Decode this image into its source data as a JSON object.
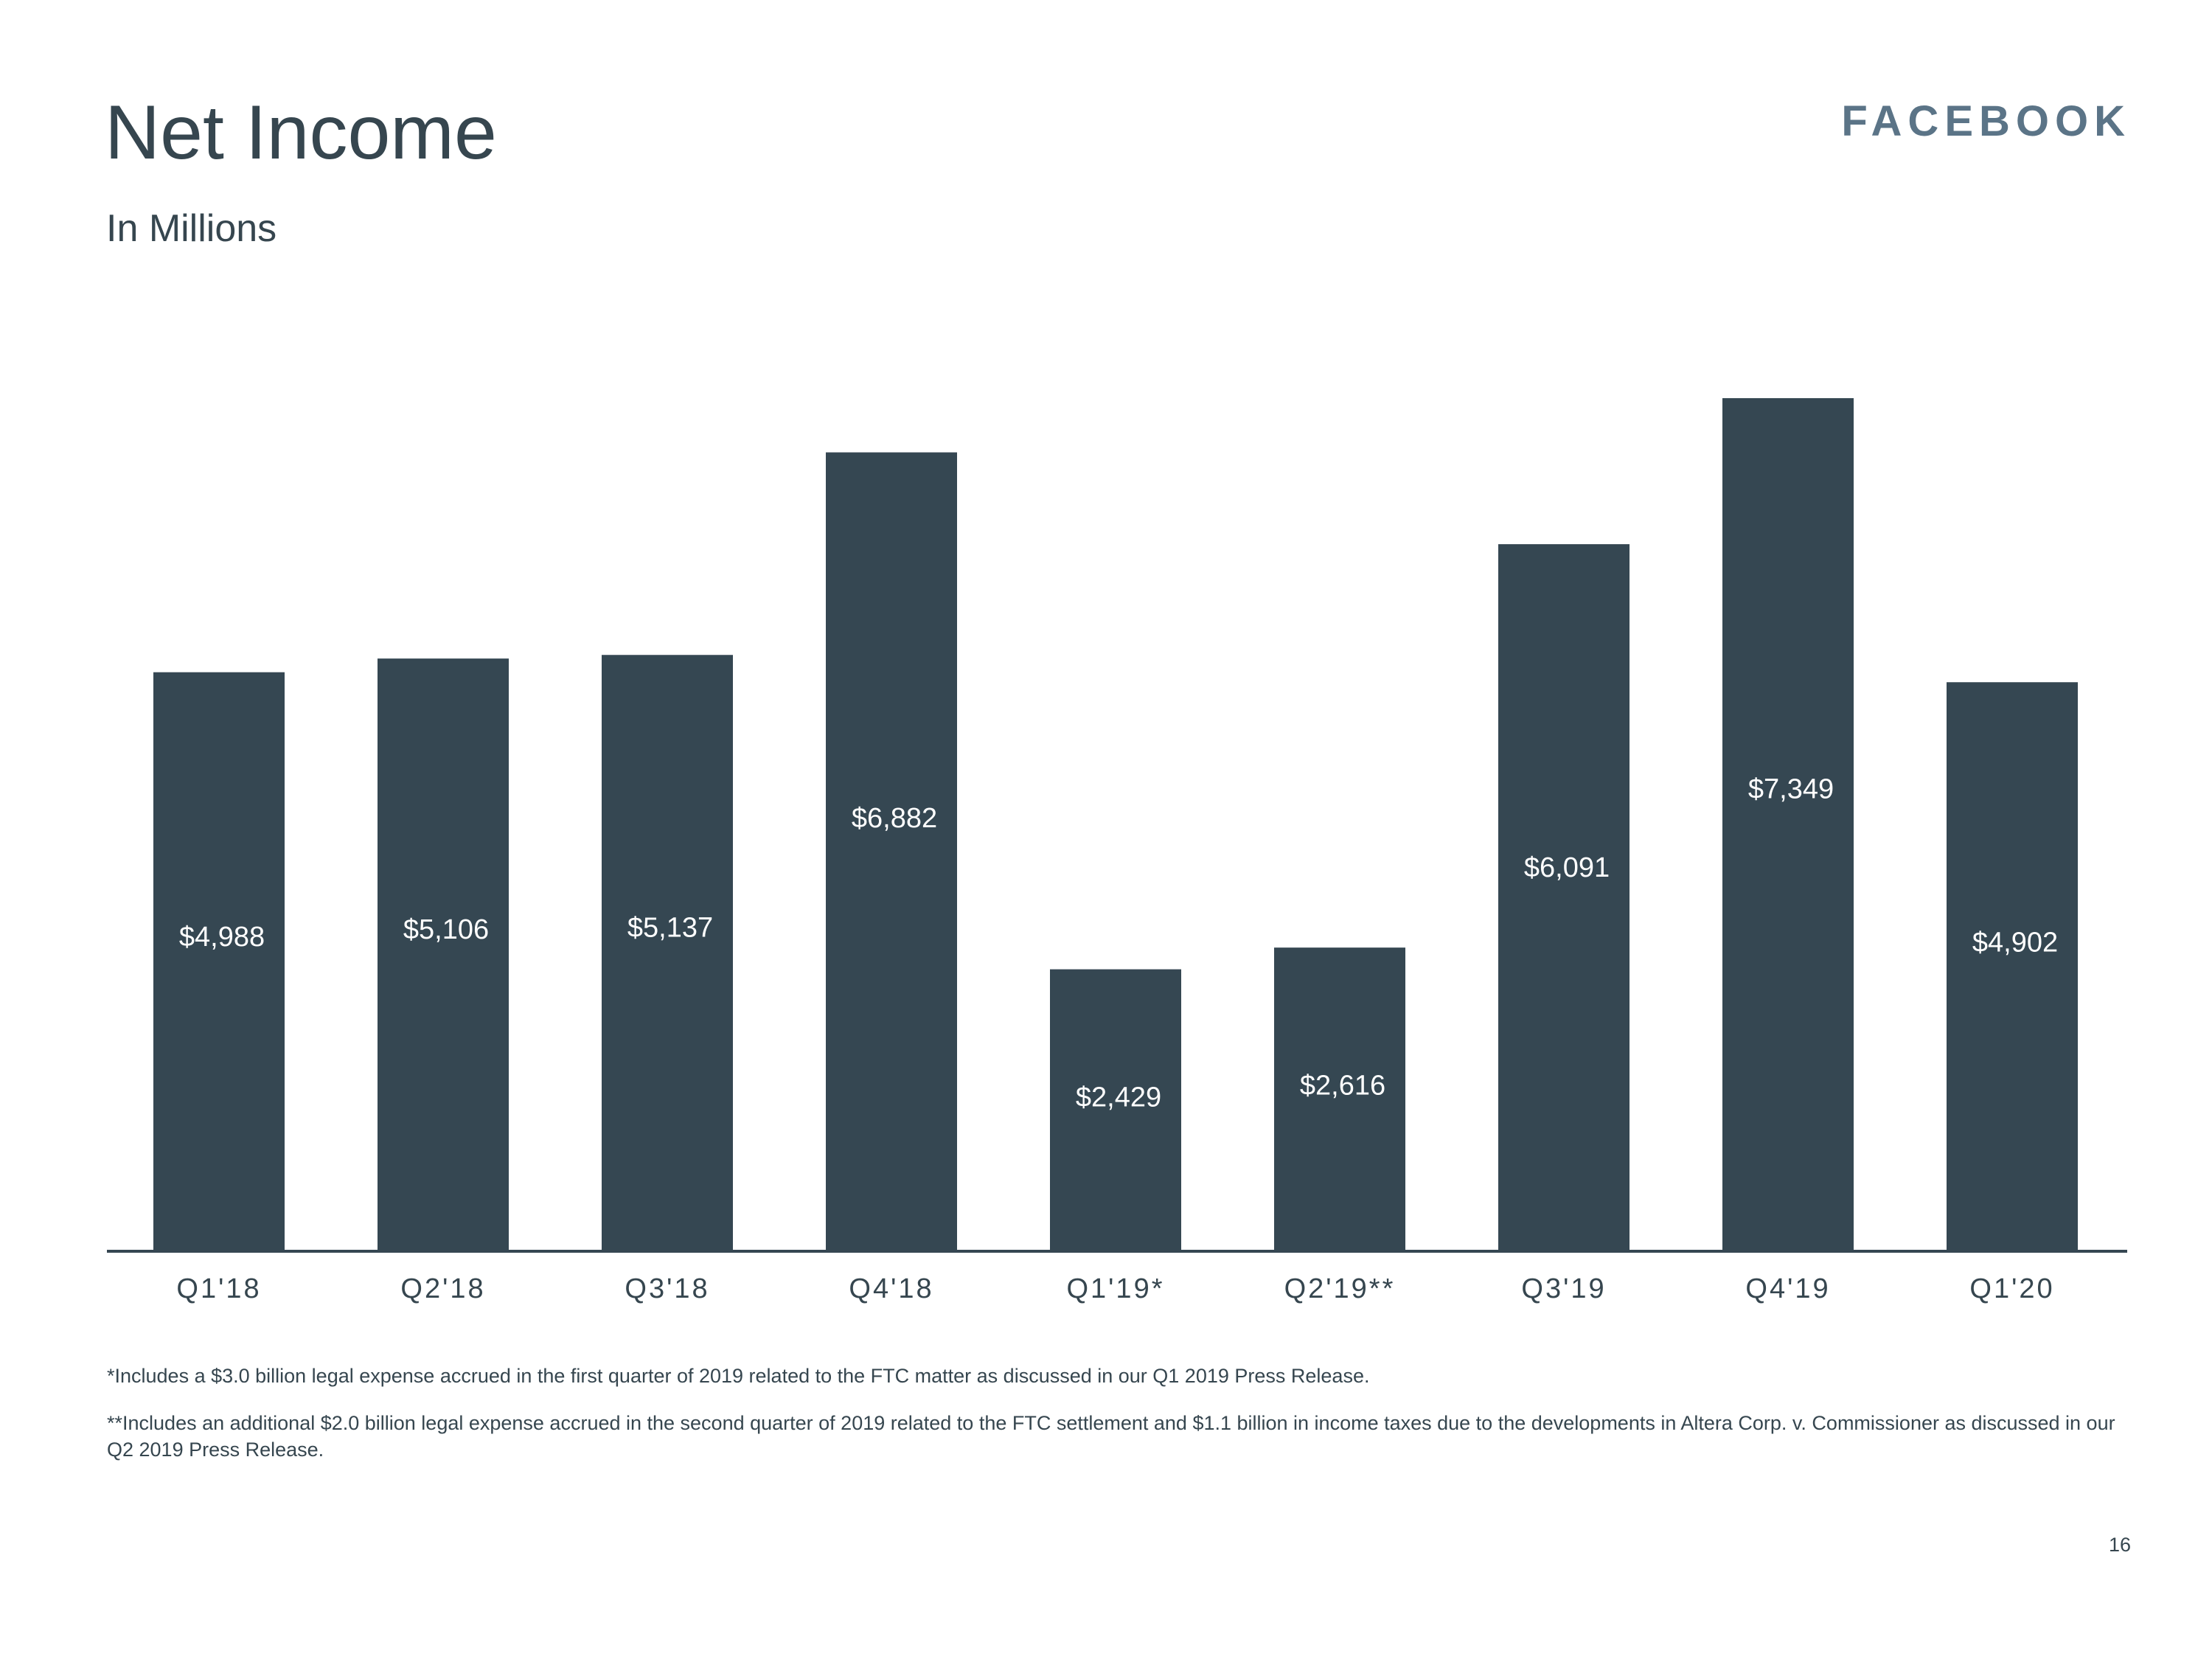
{
  "header": {
    "title": "Net Income",
    "subtitle": "In Millions",
    "brand": "FACEBOOK"
  },
  "colors": {
    "bar": "#354752",
    "text": "#36464f",
    "brand": "#5b7487",
    "label_on_bar": "#ffffff"
  },
  "chart_data": {
    "type": "bar",
    "title": "Net Income",
    "subtitle": "In Millions",
    "categories": [
      "Q1'18",
      "Q2'18",
      "Q3'18",
      "Q4'18",
      "Q1'19*",
      "Q2'19**",
      "Q3'19",
      "Q4'19",
      "Q1'20"
    ],
    "values": [
      4988,
      5106,
      5137,
      6882,
      2429,
      2616,
      6091,
      7349,
      4902
    ],
    "data_labels": [
      "$4,988",
      "$5,106",
      "$5,137",
      "$6,882",
      "$2,429",
      "$2,616",
      "$6,091",
      "$7,349",
      "$4,902"
    ],
    "ylim": [
      0,
      8000
    ],
    "xlabel": "",
    "ylabel": "",
    "grid": false,
    "legend": "none"
  },
  "footnotes": [
    "*Includes a $3.0 billion legal expense accrued in the first quarter of 2019 related to the FTC matter as discussed in our Q1 2019 Press Release.",
    "**Includes an additional $2.0 billion legal expense accrued in the second quarter of 2019 related to the FTC settlement and $1.1 billion in income taxes due to the developments in Altera Corp. v. Commissioner as discussed in our Q2 2019 Press Release."
  ],
  "page_number": "16"
}
